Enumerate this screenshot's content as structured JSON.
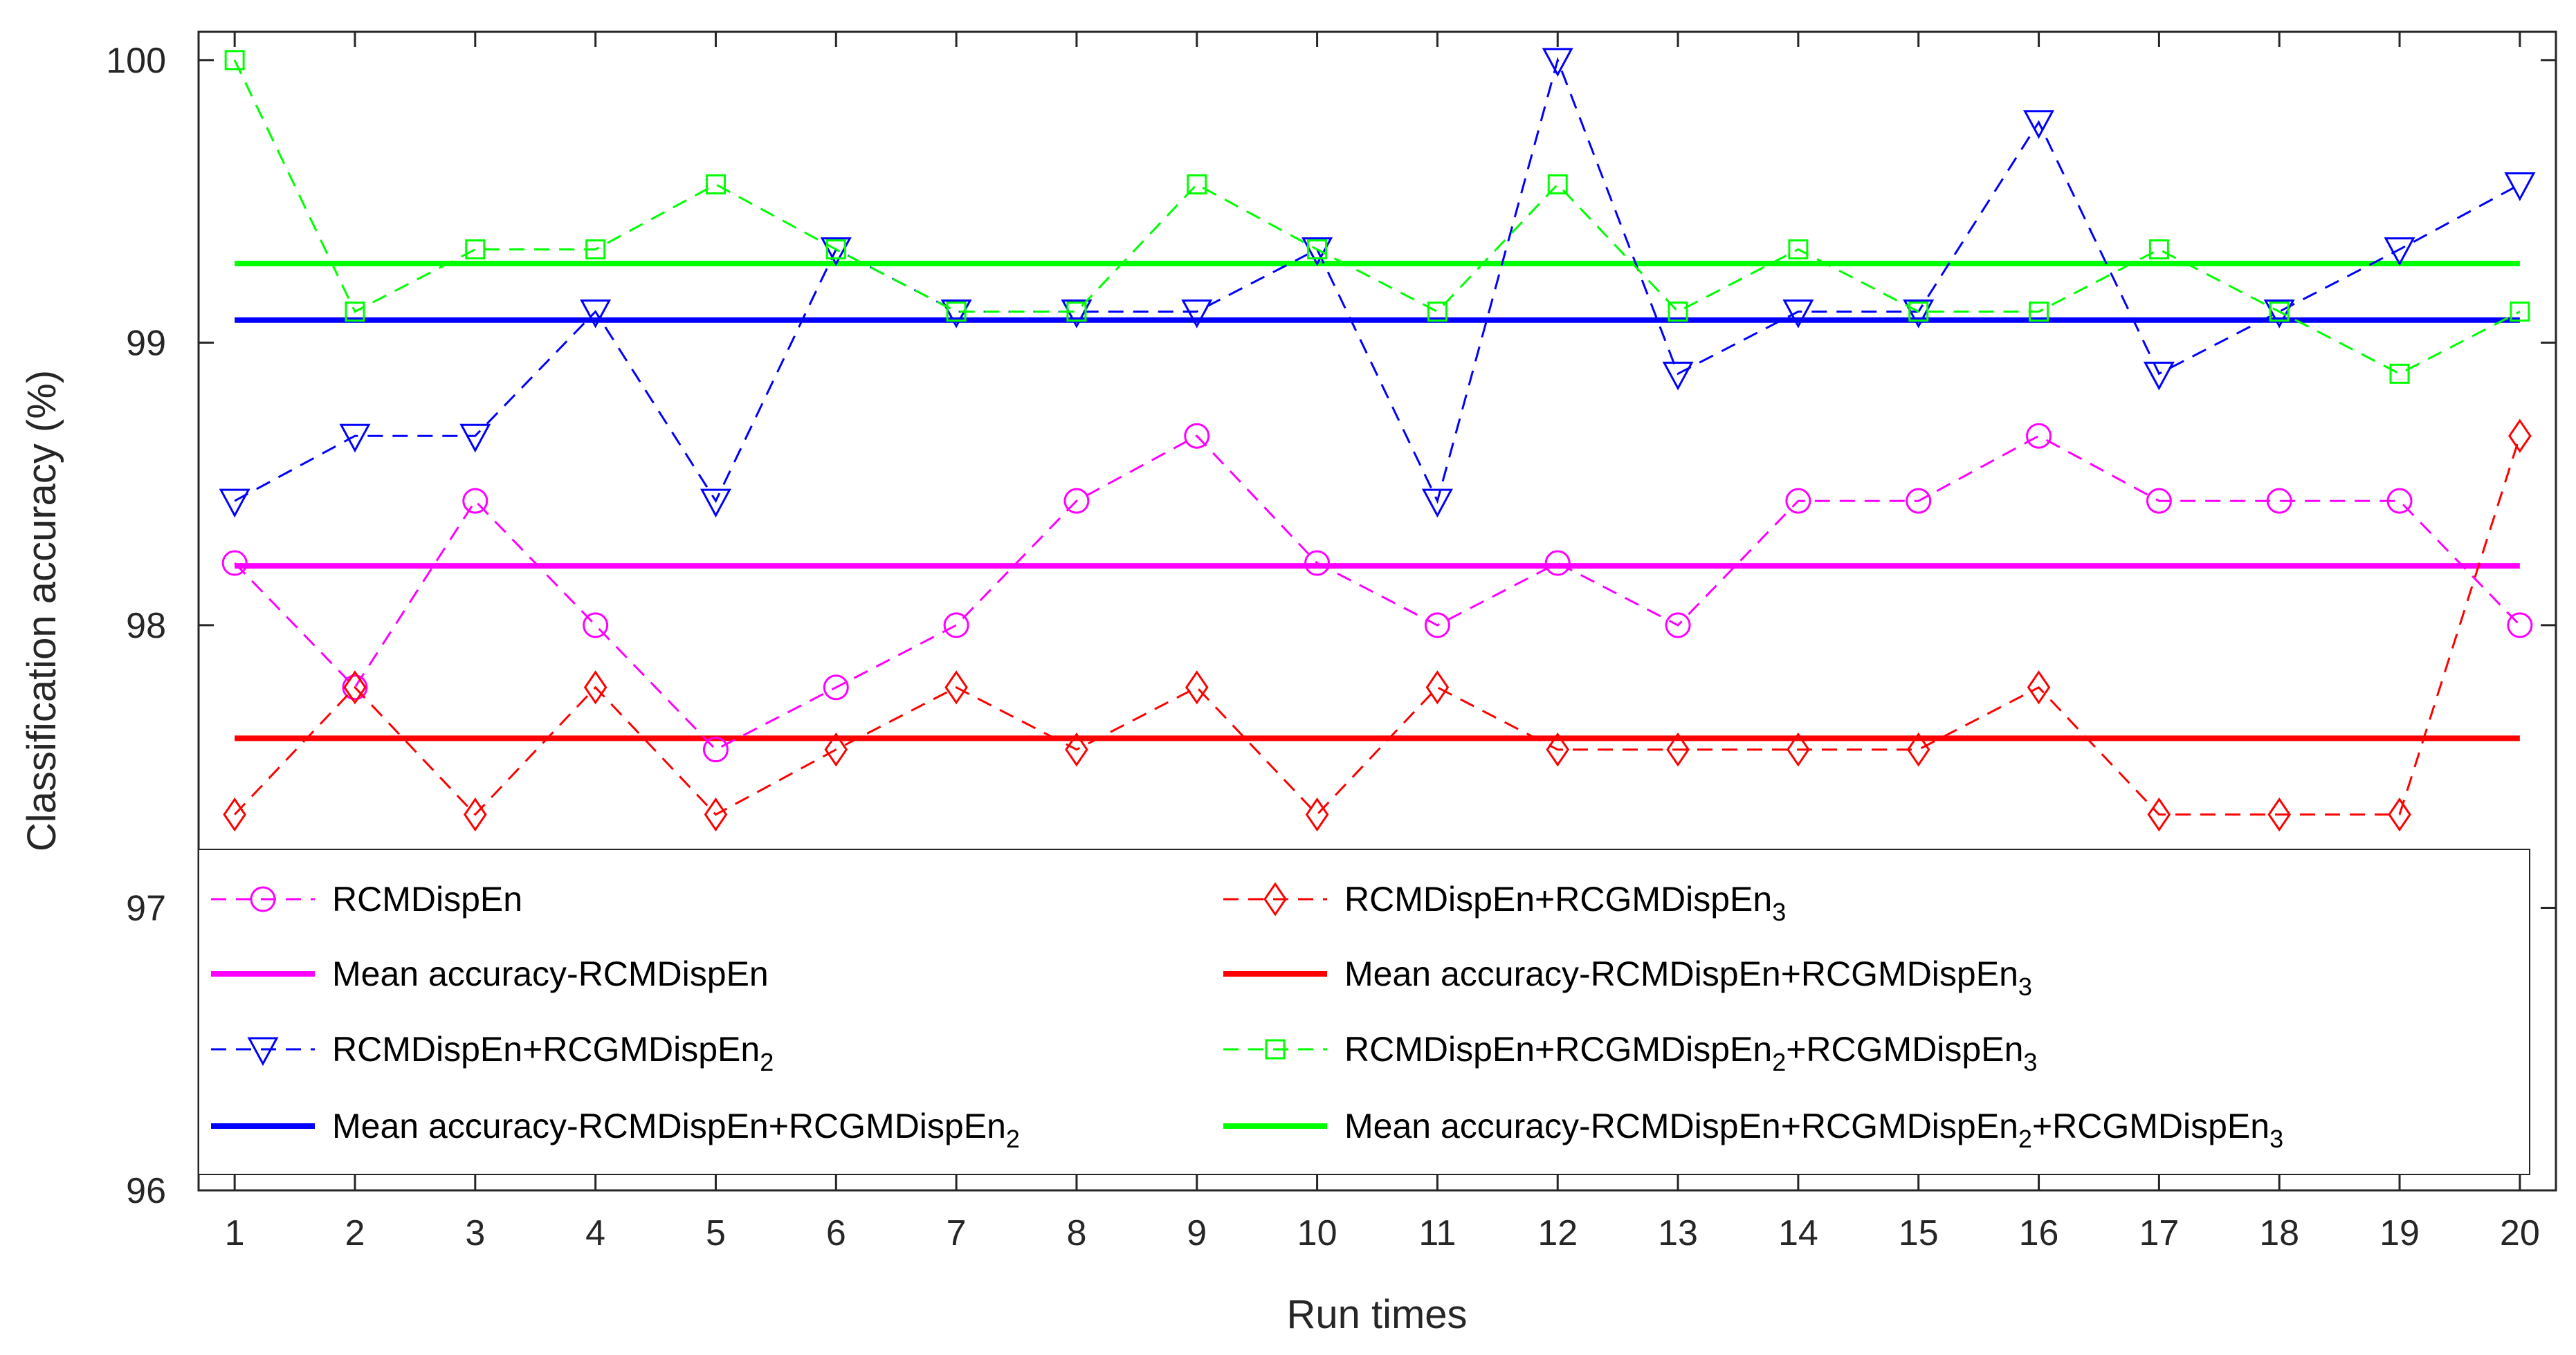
{
  "chart_data": {
    "type": "line",
    "title": "",
    "xlabel": "Run times",
    "ylabel": "Classification accuracy (%)",
    "xlim": [
      0.7,
      20.3
    ],
    "ylim": [
      96,
      100.1
    ],
    "x": [
      1,
      2,
      3,
      4,
      5,
      6,
      7,
      8,
      9,
      10,
      11,
      12,
      13,
      14,
      15,
      16,
      17,
      18,
      19,
      20
    ],
    "xticks": [
      "1",
      "2",
      "3",
      "4",
      "5",
      "6",
      "7",
      "8",
      "9",
      "10",
      "11",
      "12",
      "13",
      "14",
      "15",
      "16",
      "17",
      "18",
      "19",
      "20"
    ],
    "yticks": [
      96,
      97,
      98,
      99,
      100
    ],
    "ytick_labels": [
      "96",
      "97",
      "98",
      "99",
      "100"
    ],
    "grid": false,
    "legend_position": "bottom",
    "series": [
      {
        "id": "s1",
        "name": "RCMDispEn",
        "name_main": "RCMDispEn",
        "name_sub": "",
        "color": "#ff00ff",
        "style": "dashed",
        "marker": "circle",
        "values": [
          98.22,
          97.78,
          98.44,
          98.0,
          97.56,
          97.78,
          98.0,
          98.44,
          98.67,
          98.22,
          98.0,
          98.22,
          98.0,
          98.44,
          98.44,
          98.67,
          98.44,
          98.44,
          98.44,
          98.0
        ]
      },
      {
        "id": "s2",
        "name": "RCMDispEn+RCGMDispEn2",
        "name_main": "RCMDispEn+RCGMDispEn",
        "name_sub": "2",
        "color": "#0000ff",
        "style": "dashed",
        "marker": "triangle-down",
        "values": [
          98.44,
          98.67,
          98.67,
          99.11,
          98.44,
          99.33,
          99.11,
          99.11,
          99.11,
          99.33,
          98.44,
          100.0,
          98.89,
          99.11,
          99.11,
          99.78,
          98.89,
          99.11,
          99.33,
          99.56
        ]
      },
      {
        "id": "s3",
        "name": "RCMDispEn+RCGMDispEn3",
        "name_main": "RCMDispEn+RCGMDispEn",
        "name_sub": "3",
        "color": "#ff0000",
        "style": "dashed",
        "marker": "diamond",
        "values": [
          97.33,
          97.78,
          97.33,
          97.78,
          97.33,
          97.56,
          97.78,
          97.56,
          97.78,
          97.33,
          97.78,
          97.56,
          97.56,
          97.56,
          97.56,
          97.78,
          97.33,
          97.33,
          97.33,
          98.67
        ]
      },
      {
        "id": "s4",
        "name": "RCMDispEn+RCGMDispEn2+RCGMDispEn3",
        "name_main": "RCMDispEn+RCGMDispEn",
        "name_sub": "2",
        "name_main2": "+RCGMDispEn",
        "name_sub2": "3",
        "color": "#00ff00",
        "style": "dashed",
        "marker": "square",
        "values": [
          100.0,
          99.11,
          99.33,
          99.33,
          99.56,
          99.33,
          99.11,
          99.11,
          99.56,
          99.33,
          99.11,
          99.56,
          99.11,
          99.33,
          99.11,
          99.11,
          99.33,
          99.11,
          98.89,
          99.11
        ]
      }
    ],
    "mean_lines": [
      {
        "id": "m1",
        "name": "Mean accuracy-RCMDispEn",
        "name_main": "Mean accuracy-RCMDispEn",
        "name_sub": "",
        "color": "#ff00ff",
        "value": 98.21
      },
      {
        "id": "m2",
        "name": "Mean accuracy-RCMDispEn+RCGMDispEn2",
        "name_main": "Mean accuracy-RCMDispEn+RCGMDispEn",
        "name_sub": "2",
        "color": "#0000ff",
        "value": 99.08
      },
      {
        "id": "m3",
        "name": "Mean accuracy-RCMDispEn+RCGMDispEn3",
        "name_main": "Mean accuracy-RCMDispEn+RCGMDispEn",
        "name_sub": "3",
        "color": "#ff0000",
        "value": 97.6
      },
      {
        "id": "m4",
        "name": "Mean accuracy-RCMDispEn+RCGMDispEn2+RCGMDispEn3",
        "name_main": "Mean accuracy-RCMDispEn+RCGMDispEn",
        "name_sub": "2",
        "name_main2": "+RCGMDispEn",
        "name_sub2": "3",
        "color": "#00ff00",
        "value": 99.28
      }
    ],
    "legend_order": [
      "s1",
      "s3",
      "m1",
      "m3",
      "s2",
      "s4",
      "m2",
      "m4"
    ]
  }
}
